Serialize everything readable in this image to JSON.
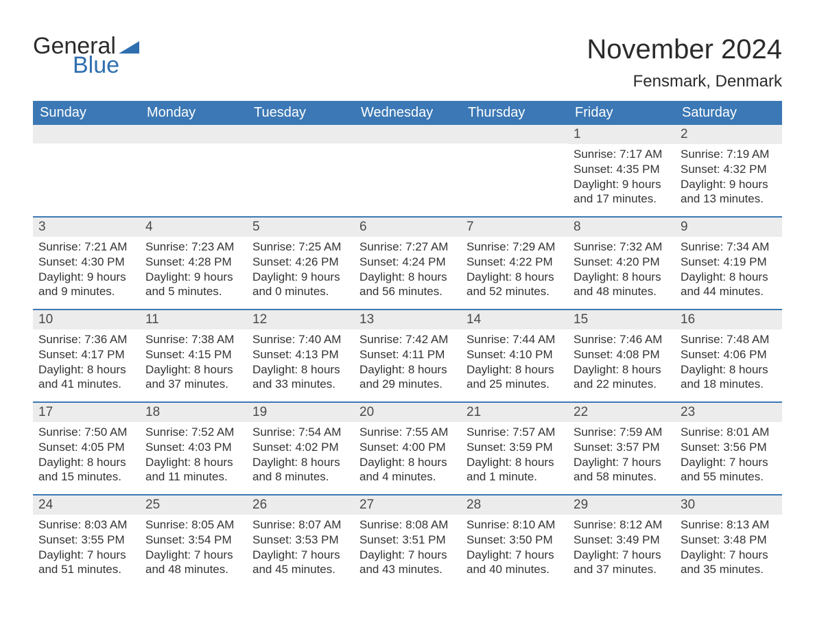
{
  "logo": {
    "text1": "General",
    "text2": "Blue",
    "accent_color": "#2f6fb0"
  },
  "title": "November 2024",
  "location": "Fensmark, Denmark",
  "header_bg": "#3b78b5",
  "daynum_bg": "#ececec",
  "columns": [
    "Sunday",
    "Monday",
    "Tuesday",
    "Wednesday",
    "Thursday",
    "Friday",
    "Saturday"
  ],
  "weeks": [
    [
      {
        "n": "",
        "empty": true
      },
      {
        "n": "",
        "empty": true
      },
      {
        "n": "",
        "empty": true
      },
      {
        "n": "",
        "empty": true
      },
      {
        "n": "",
        "empty": true
      },
      {
        "n": "1",
        "sunrise": "Sunrise: 7:17 AM",
        "sunset": "Sunset: 4:35 PM",
        "day1": "Daylight: 9 hours",
        "day2": "and 17 minutes."
      },
      {
        "n": "2",
        "sunrise": "Sunrise: 7:19 AM",
        "sunset": "Sunset: 4:32 PM",
        "day1": "Daylight: 9 hours",
        "day2": "and 13 minutes."
      }
    ],
    [
      {
        "n": "3",
        "sunrise": "Sunrise: 7:21 AM",
        "sunset": "Sunset: 4:30 PM",
        "day1": "Daylight: 9 hours",
        "day2": "and 9 minutes."
      },
      {
        "n": "4",
        "sunrise": "Sunrise: 7:23 AM",
        "sunset": "Sunset: 4:28 PM",
        "day1": "Daylight: 9 hours",
        "day2": "and 5 minutes."
      },
      {
        "n": "5",
        "sunrise": "Sunrise: 7:25 AM",
        "sunset": "Sunset: 4:26 PM",
        "day1": "Daylight: 9 hours",
        "day2": "and 0 minutes."
      },
      {
        "n": "6",
        "sunrise": "Sunrise: 7:27 AM",
        "sunset": "Sunset: 4:24 PM",
        "day1": "Daylight: 8 hours",
        "day2": "and 56 minutes."
      },
      {
        "n": "7",
        "sunrise": "Sunrise: 7:29 AM",
        "sunset": "Sunset: 4:22 PM",
        "day1": "Daylight: 8 hours",
        "day2": "and 52 minutes."
      },
      {
        "n": "8",
        "sunrise": "Sunrise: 7:32 AM",
        "sunset": "Sunset: 4:20 PM",
        "day1": "Daylight: 8 hours",
        "day2": "and 48 minutes."
      },
      {
        "n": "9",
        "sunrise": "Sunrise: 7:34 AM",
        "sunset": "Sunset: 4:19 PM",
        "day1": "Daylight: 8 hours",
        "day2": "and 44 minutes."
      }
    ],
    [
      {
        "n": "10",
        "sunrise": "Sunrise: 7:36 AM",
        "sunset": "Sunset: 4:17 PM",
        "day1": "Daylight: 8 hours",
        "day2": "and 41 minutes."
      },
      {
        "n": "11",
        "sunrise": "Sunrise: 7:38 AM",
        "sunset": "Sunset: 4:15 PM",
        "day1": "Daylight: 8 hours",
        "day2": "and 37 minutes."
      },
      {
        "n": "12",
        "sunrise": "Sunrise: 7:40 AM",
        "sunset": "Sunset: 4:13 PM",
        "day1": "Daylight: 8 hours",
        "day2": "and 33 minutes."
      },
      {
        "n": "13",
        "sunrise": "Sunrise: 7:42 AM",
        "sunset": "Sunset: 4:11 PM",
        "day1": "Daylight: 8 hours",
        "day2": "and 29 minutes."
      },
      {
        "n": "14",
        "sunrise": "Sunrise: 7:44 AM",
        "sunset": "Sunset: 4:10 PM",
        "day1": "Daylight: 8 hours",
        "day2": "and 25 minutes."
      },
      {
        "n": "15",
        "sunrise": "Sunrise: 7:46 AM",
        "sunset": "Sunset: 4:08 PM",
        "day1": "Daylight: 8 hours",
        "day2": "and 22 minutes."
      },
      {
        "n": "16",
        "sunrise": "Sunrise: 7:48 AM",
        "sunset": "Sunset: 4:06 PM",
        "day1": "Daylight: 8 hours",
        "day2": "and 18 minutes."
      }
    ],
    [
      {
        "n": "17",
        "sunrise": "Sunrise: 7:50 AM",
        "sunset": "Sunset: 4:05 PM",
        "day1": "Daylight: 8 hours",
        "day2": "and 15 minutes."
      },
      {
        "n": "18",
        "sunrise": "Sunrise: 7:52 AM",
        "sunset": "Sunset: 4:03 PM",
        "day1": "Daylight: 8 hours",
        "day2": "and 11 minutes."
      },
      {
        "n": "19",
        "sunrise": "Sunrise: 7:54 AM",
        "sunset": "Sunset: 4:02 PM",
        "day1": "Daylight: 8 hours",
        "day2": "and 8 minutes."
      },
      {
        "n": "20",
        "sunrise": "Sunrise: 7:55 AM",
        "sunset": "Sunset: 4:00 PM",
        "day1": "Daylight: 8 hours",
        "day2": "and 4 minutes."
      },
      {
        "n": "21",
        "sunrise": "Sunrise: 7:57 AM",
        "sunset": "Sunset: 3:59 PM",
        "day1": "Daylight: 8 hours",
        "day2": "and 1 minute."
      },
      {
        "n": "22",
        "sunrise": "Sunrise: 7:59 AM",
        "sunset": "Sunset: 3:57 PM",
        "day1": "Daylight: 7 hours",
        "day2": "and 58 minutes."
      },
      {
        "n": "23",
        "sunrise": "Sunrise: 8:01 AM",
        "sunset": "Sunset: 3:56 PM",
        "day1": "Daylight: 7 hours",
        "day2": "and 55 minutes."
      }
    ],
    [
      {
        "n": "24",
        "sunrise": "Sunrise: 8:03 AM",
        "sunset": "Sunset: 3:55 PM",
        "day1": "Daylight: 7 hours",
        "day2": "and 51 minutes."
      },
      {
        "n": "25",
        "sunrise": "Sunrise: 8:05 AM",
        "sunset": "Sunset: 3:54 PM",
        "day1": "Daylight: 7 hours",
        "day2": "and 48 minutes."
      },
      {
        "n": "26",
        "sunrise": "Sunrise: 8:07 AM",
        "sunset": "Sunset: 3:53 PM",
        "day1": "Daylight: 7 hours",
        "day2": "and 45 minutes."
      },
      {
        "n": "27",
        "sunrise": "Sunrise: 8:08 AM",
        "sunset": "Sunset: 3:51 PM",
        "day1": "Daylight: 7 hours",
        "day2": "and 43 minutes."
      },
      {
        "n": "28",
        "sunrise": "Sunrise: 8:10 AM",
        "sunset": "Sunset: 3:50 PM",
        "day1": "Daylight: 7 hours",
        "day2": "and 40 minutes."
      },
      {
        "n": "29",
        "sunrise": "Sunrise: 8:12 AM",
        "sunset": "Sunset: 3:49 PM",
        "day1": "Daylight: 7 hours",
        "day2": "and 37 minutes."
      },
      {
        "n": "30",
        "sunrise": "Sunrise: 8:13 AM",
        "sunset": "Sunset: 3:48 PM",
        "day1": "Daylight: 7 hours",
        "day2": "and 35 minutes."
      }
    ]
  ]
}
